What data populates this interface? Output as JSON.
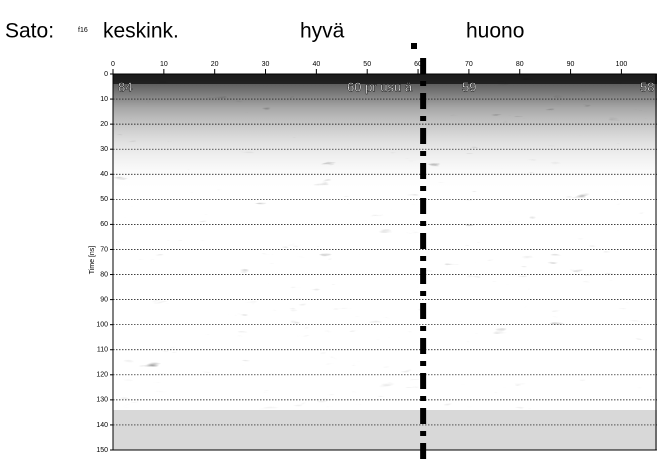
{
  "chart_data": {
    "type": "radargram",
    "header_labels": {
      "site": "Sato:",
      "site_code": "f16",
      "left": "keskink.",
      "middle": "hyvä",
      "right": "huono"
    },
    "ylabel": "Time [ns]",
    "annotations": [
      "84",
      "60 pr usu ä",
      "59",
      "58"
    ],
    "xlim": [
      0,
      107
    ],
    "xticks": [
      0,
      10,
      20,
      30,
      40,
      50,
      60,
      70,
      80,
      90,
      100
    ],
    "ylim": [
      0,
      150
    ],
    "yticks": [
      0,
      10,
      20,
      30,
      40,
      50,
      60,
      70,
      80,
      90,
      100,
      110,
      120,
      130,
      140,
      150
    ],
    "grid": true,
    "marker_x": 61
  }
}
